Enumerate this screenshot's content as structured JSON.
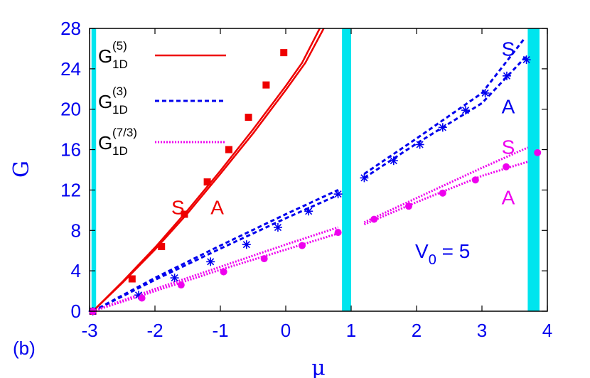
{
  "chart_data": {
    "type": "line",
    "panel_label": "(b)",
    "xlabel": "μ",
    "ylabel": "G",
    "xlim": [
      -3,
      4
    ],
    "ylim": [
      0,
      28
    ],
    "xticks": [
      -3,
      -2,
      -1,
      0,
      1,
      2,
      3,
      4
    ],
    "yticks": [
      0,
      4,
      8,
      12,
      16,
      20,
      24,
      28
    ],
    "grid": false,
    "legend_position": "top-left",
    "bands": [
      {
        "x0": -2.97,
        "x1": -2.9,
        "color": "#00e5ee"
      },
      {
        "x0": 0.86,
        "x1": 1.0,
        "color": "#00e5ee"
      },
      {
        "x0": 3.7,
        "x1": 3.88,
        "color": "#00e5ee"
      }
    ],
    "annotation": {
      "base": "V",
      "sub": "0",
      "rest": " = 5"
    },
    "series_labels": [
      {
        "text": "S",
        "x": -1.75,
        "y": 9.6,
        "color": "#ee0000"
      },
      {
        "text": "A",
        "x": -1.15,
        "y": 9.6,
        "color": "#ee0000"
      },
      {
        "text": "S",
        "x": 3.3,
        "y": 25.3,
        "color": "#0000ee"
      },
      {
        "text": "A",
        "x": 3.3,
        "y": 19.6,
        "color": "#0000ee"
      },
      {
        "text": "S",
        "x": 3.3,
        "y": 15.6,
        "color": "#ee00ee"
      },
      {
        "text": "A",
        "x": 3.3,
        "y": 10.6,
        "color": "#ee00ee"
      }
    ],
    "series": [
      {
        "name": "G_1D^(5)",
        "legend_main": "G",
        "legend_sup": "(5)",
        "legend_sub": "1D",
        "color": "#ee0000",
        "style": "solid",
        "lines": [
          [
            [
              -2.95,
              0
            ],
            [
              -2.5,
              2.9
            ],
            [
              -2.0,
              6.3
            ],
            [
              -1.5,
              10.0
            ],
            [
              -1.0,
              13.9
            ],
            [
              -0.5,
              18.0
            ],
            [
              0.0,
              22.3
            ],
            [
              0.25,
              24.6
            ],
            [
              0.52,
              28
            ]
          ],
          [
            [
              -2.95,
              0
            ],
            [
              -2.5,
              2.8
            ],
            [
              -2.0,
              6.1
            ],
            [
              -1.5,
              9.7
            ],
            [
              -1.0,
              13.6
            ],
            [
              -0.5,
              17.6
            ],
            [
              0.0,
              21.9
            ],
            [
              0.3,
              24.6
            ],
            [
              0.58,
              28
            ]
          ]
        ],
        "markers": {
          "shape": "square",
          "points": [
            [
              -2.95,
              0
            ],
            [
              -2.35,
              3.2
            ],
            [
              -1.9,
              6.4
            ],
            [
              -1.55,
              9.6
            ],
            [
              -1.2,
              12.8
            ],
            [
              -0.87,
              16.0
            ],
            [
              -0.57,
              19.2
            ],
            [
              -0.3,
              22.4
            ],
            [
              -0.03,
              25.6
            ]
          ]
        }
      },
      {
        "name": "G_1D^(3)",
        "legend_main": "G",
        "legend_sup": "(3)",
        "legend_sub": "1D",
        "color": "#0000ee",
        "style": "dashed",
        "lines": [
          [
            [
              -2.95,
              0
            ],
            [
              -2.0,
              3.3
            ],
            [
              -1.0,
              6.5
            ],
            [
              0.0,
              9.6
            ],
            [
              0.8,
              12.0
            ]
          ],
          [
            [
              -2.95,
              0
            ],
            [
              -2.0,
              3.1
            ],
            [
              -1.0,
              6.2
            ],
            [
              0.0,
              9.2
            ],
            [
              0.8,
              11.5
            ]
          ],
          [
            [
              1.2,
              13.6
            ],
            [
              2.0,
              17.1
            ],
            [
              3.0,
              21.6
            ],
            [
              3.65,
              27.0
            ]
          ],
          [
            [
              1.2,
              13.2
            ],
            [
              2.0,
              16.6
            ],
            [
              3.0,
              20.6
            ],
            [
              3.7,
              25.4
            ]
          ]
        ],
        "markers": {
          "shape": "star",
          "points": [
            [
              -2.95,
              0
            ],
            [
              -2.25,
              1.6
            ],
            [
              -1.7,
              3.3
            ],
            [
              -1.15,
              4.9
            ],
            [
              -0.6,
              6.6
            ],
            [
              -0.12,
              8.3
            ],
            [
              0.35,
              9.9
            ],
            [
              0.8,
              11.6
            ],
            [
              1.2,
              13.2
            ],
            [
              1.65,
              14.9
            ],
            [
              2.05,
              16.5
            ],
            [
              2.4,
              18.2
            ],
            [
              2.75,
              19.9
            ],
            [
              3.05,
              21.6
            ],
            [
              3.38,
              23.3
            ],
            [
              3.68,
              24.9
            ]
          ]
        }
      },
      {
        "name": "G_1D^(7/3)",
        "legend_main": "G",
        "legend_sup": "(7/3)",
        "legend_sub": "1D",
        "color": "#ee00ee",
        "style": "dotted",
        "lines": [
          [
            [
              -2.95,
              0
            ],
            [
              -2.0,
              2.2
            ],
            [
              -1.0,
              4.4
            ],
            [
              0.0,
              6.6
            ],
            [
              0.8,
              8.3
            ]
          ],
          [
            [
              -2.95,
              0
            ],
            [
              -2.0,
              2.0
            ],
            [
              -1.0,
              4.1
            ],
            [
              0.0,
              6.1
            ],
            [
              0.8,
              7.7
            ]
          ],
          [
            [
              1.2,
              8.8
            ],
            [
              2.0,
              11.2
            ],
            [
              3.0,
              14.2
            ],
            [
              3.7,
              16.2
            ]
          ],
          [
            [
              1.2,
              8.6
            ],
            [
              2.0,
              10.8
            ],
            [
              3.0,
              13.4
            ],
            [
              3.7,
              14.8
            ]
          ]
        ],
        "markers": {
          "shape": "circle",
          "points": [
            [
              -2.95,
              0
            ],
            [
              -2.2,
              1.3
            ],
            [
              -1.6,
              2.6
            ],
            [
              -0.95,
              3.9
            ],
            [
              -0.33,
              5.2
            ],
            [
              0.25,
              6.5
            ],
            [
              0.8,
              7.8
            ],
            [
              1.35,
              9.1
            ],
            [
              1.88,
              10.4
            ],
            [
              2.4,
              11.7
            ],
            [
              2.9,
              13.0
            ],
            [
              3.37,
              14.3
            ],
            [
              3.85,
              15.7
            ]
          ]
        }
      }
    ]
  }
}
